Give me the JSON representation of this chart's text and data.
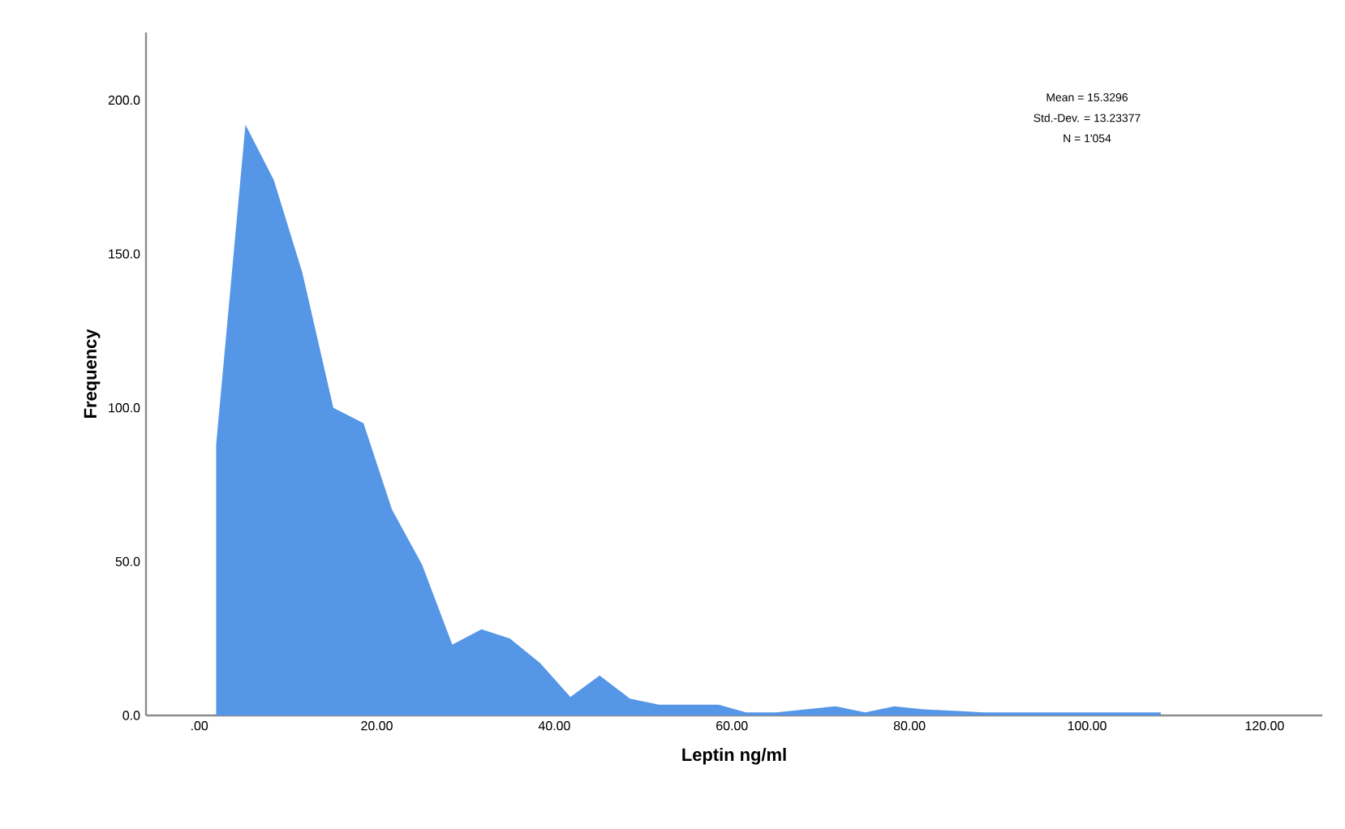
{
  "chart_data": {
    "type": "area",
    "xlabel": "Leptin ng/ml",
    "ylabel": "Frequency",
    "annotations": [
      "Mean = 15.3296",
      "Std.-Dev. =  13.23377",
      "N = 1'054"
    ],
    "x": [
      1.9,
      5.2,
      8.4,
      11.6,
      15.1,
      18.5,
      21.7,
      25.1,
      28.5,
      31.8,
      35.0,
      38.4,
      41.8,
      45.1,
      48.5,
      51.8,
      55.2,
      58.5,
      61.6,
      65.0,
      68.3,
      71.7,
      75.0,
      78.3,
      81.6,
      85.0,
      88.3,
      91.6,
      95.0,
      98.3,
      101.6,
      105.0,
      108.3
    ],
    "series": [
      {
        "color": "#5596e6",
        "values": [
          88,
          192,
          174,
          144,
          100,
          95,
          67,
          49,
          23,
          28,
          25,
          17,
          6,
          13,
          5.5,
          3.5,
          3.5,
          3.5,
          1,
          1,
          2,
          3,
          1,
          3,
          2,
          1.5,
          1,
          1,
          1,
          1,
          1,
          1,
          1
        ]
      }
    ],
    "xlim": [
      -6,
      126.5
    ],
    "ylim": [
      0,
      222
    ],
    "xticks": [
      {
        "value": 0,
        "label": ".00"
      },
      {
        "value": 20,
        "label": "20.00"
      },
      {
        "value": 40,
        "label": "40.00"
      },
      {
        "value": 60,
        "label": "60.00"
      },
      {
        "value": 80,
        "label": "80.00"
      },
      {
        "value": 100,
        "label": "100.00"
      },
      {
        "value": 120,
        "label": "120.00"
      }
    ],
    "yticks": [
      {
        "value": 0,
        "label": "0.0"
      },
      {
        "value": 50,
        "label": "50.0"
      },
      {
        "value": 100,
        "label": "100.0"
      },
      {
        "value": 150,
        "label": "150.0"
      },
      {
        "value": 200,
        "label": "200.0"
      }
    ],
    "grid": false
  }
}
